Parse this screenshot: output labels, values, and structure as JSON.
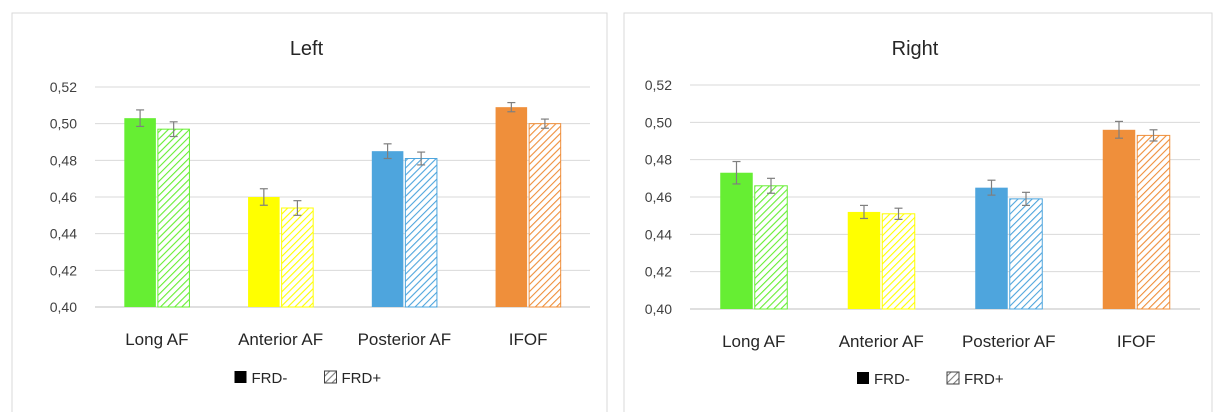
{
  "chart_data": [
    {
      "type": "bar",
      "title": "Left",
      "categories": [
        "Long AF",
        "Anterior AF",
        "Posterior AF",
        "IFOF"
      ],
      "category_colors": [
        "#66ee33",
        "#ffff00",
        "#4ea5dd",
        "#ef8f3b"
      ],
      "series": [
        {
          "name": "FRD-",
          "style": "solid",
          "values": [
            0.503,
            0.46,
            0.485,
            0.509
          ],
          "errors": [
            0.0045,
            0.0045,
            0.004,
            0.0025
          ]
        },
        {
          "name": "FRD+",
          "style": "hatched",
          "values": [
            0.497,
            0.454,
            0.481,
            0.5
          ],
          "errors": [
            0.004,
            0.004,
            0.0035,
            0.0025
          ]
        }
      ],
      "yticks": [
        "0,40",
        "0,42",
        "0,44",
        "0,46",
        "0,48",
        "0,50",
        "0,52"
      ],
      "ylim": [
        0.4,
        0.52
      ],
      "legend_position": "bottom",
      "grid": true
    },
    {
      "type": "bar",
      "title": "Right",
      "categories": [
        "Long AF",
        "Anterior AF",
        "Posterior AF",
        "IFOF"
      ],
      "category_colors": [
        "#66ee33",
        "#ffff00",
        "#4ea5dd",
        "#ef8f3b"
      ],
      "series": [
        {
          "name": "FRD-",
          "style": "solid",
          "values": [
            0.473,
            0.452,
            0.465,
            0.496
          ],
          "errors": [
            0.006,
            0.0035,
            0.004,
            0.0045
          ]
        },
        {
          "name": "FRD+",
          "style": "hatched",
          "values": [
            0.466,
            0.451,
            0.459,
            0.493
          ],
          "errors": [
            0.004,
            0.003,
            0.0035,
            0.003
          ]
        }
      ],
      "yticks": [
        "0,40",
        "0,42",
        "0,44",
        "0,46",
        "0,48",
        "0,50",
        "0,52"
      ],
      "ylim": [
        0.4,
        0.52
      ],
      "legend_position": "bottom",
      "grid": true
    }
  ]
}
